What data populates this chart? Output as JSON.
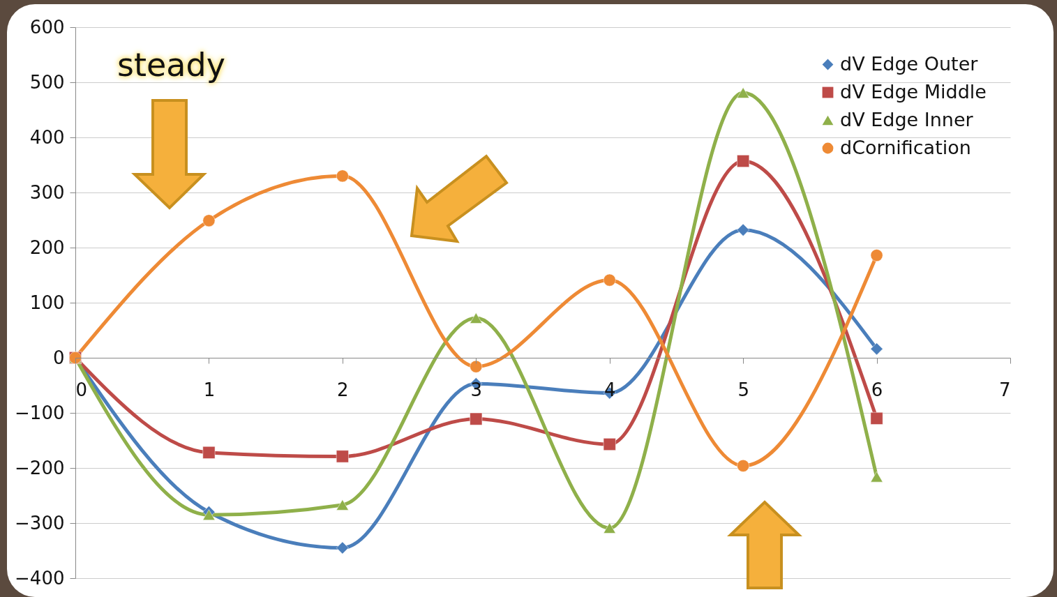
{
  "chart_data": {
    "type": "line",
    "x": [
      0,
      1,
      2,
      3,
      4,
      5,
      6
    ],
    "series": [
      {
        "name": "dV Edge Outer",
        "color": "#4a7ebb",
        "marker": "diamond",
        "values": [
          0,
          -280,
          -345,
          -47,
          -64,
          232,
          16
        ]
      },
      {
        "name": "dV Edge Middle",
        "color": "#be4b48",
        "marker": "square",
        "values": [
          0,
          -172,
          -179,
          -111,
          -157,
          357,
          -110
        ]
      },
      {
        "name": "dV Edge Inner",
        "color": "#8fb04a",
        "marker": "triangle",
        "values": [
          0,
          -285,
          -267,
          72,
          -309,
          481,
          -216
        ]
      },
      {
        "name": "dCornification",
        "color": "#ee8a35",
        "marker": "circle",
        "values": [
          0,
          249,
          330,
          -16,
          141,
          -196,
          186
        ]
      }
    ],
    "xlim": [
      0,
      7
    ],
    "xticks": [
      0,
      1,
      2,
      3,
      4,
      5,
      6,
      7
    ],
    "ylim": [
      -400,
      600
    ],
    "yticks": [
      -400,
      -300,
      -200,
      -100,
      0,
      100,
      200,
      300,
      400,
      500,
      600
    ],
    "grid": "y",
    "legend": "top right",
    "line_style": "solid",
    "annotations": [
      "steady"
    ]
  }
}
